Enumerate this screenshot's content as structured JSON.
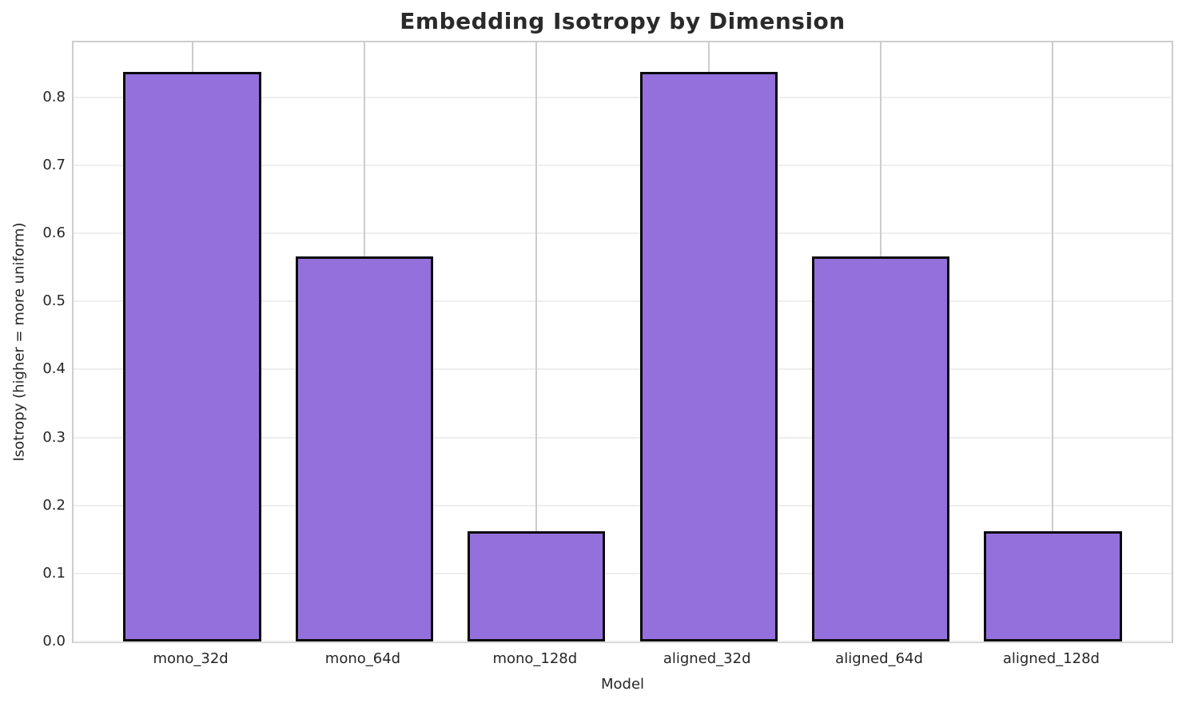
{
  "chart_data": {
    "type": "bar",
    "title": "Embedding Isotropy by Dimension",
    "xlabel": "Model",
    "ylabel": "Isotropy (higher = more uniform)",
    "categories": [
      "mono_32d",
      "mono_64d",
      "mono_128d",
      "aligned_32d",
      "aligned_64d",
      "aligned_128d"
    ],
    "values": [
      0.838,
      0.566,
      0.162,
      0.838,
      0.566,
      0.162
    ],
    "yticks": [
      0.0,
      0.1,
      0.2,
      0.3,
      0.4,
      0.5,
      0.6,
      0.7,
      0.8
    ],
    "ytick_labels": [
      "0.0",
      "0.1",
      "0.2",
      "0.3",
      "0.4",
      "0.5",
      "0.6",
      "0.7",
      "0.8"
    ],
    "ylim": [
      0,
      0.881
    ],
    "xlim": [
      -0.69,
      5.69
    ],
    "bar_width": 0.8,
    "grid": "both",
    "legend": "none",
    "colors": {
      "bar_fill": "#9370DB",
      "bar_edge": "#0a0a0a",
      "h_grid": "#eeeeee",
      "v_grid": "#cccccc",
      "spine": "#cdcdcd",
      "text": "#262626"
    }
  }
}
